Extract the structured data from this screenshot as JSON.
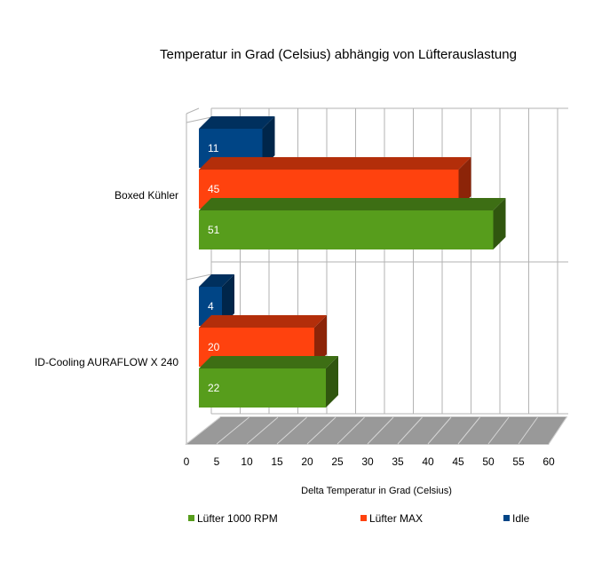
{
  "chart_data": {
    "type": "bar",
    "orientation": "horizontal",
    "title": "Temperatur in Grad (Celsius) abhängig von Lüfterauslastung",
    "xlabel": "Delta Temperatur in Grad (Celsius)",
    "ylabel": "",
    "xlim": [
      0,
      60
    ],
    "xticks": [
      "0",
      "5",
      "10",
      "15",
      "20",
      "25",
      "30",
      "35",
      "40",
      "45",
      "50",
      "55",
      "60"
    ],
    "grid": true,
    "legend_position": "bottom",
    "categories": [
      "Boxed Kühler",
      "ID-Cooling AURAFLOW X 240"
    ],
    "series": [
      {
        "name": "Idle",
        "values": [
          11,
          4
        ],
        "color": "#004586"
      },
      {
        "name": "Lüfter MAX",
        "values": [
          45,
          20
        ],
        "color": "#ff420e"
      },
      {
        "name": "Lüfter 1000 RPM",
        "values": [
          51,
          22
        ],
        "color": "#579d1c"
      }
    ],
    "legend_order": [
      "Lüfter 1000 RPM",
      "Lüfter MAX",
      "Idle"
    ]
  }
}
